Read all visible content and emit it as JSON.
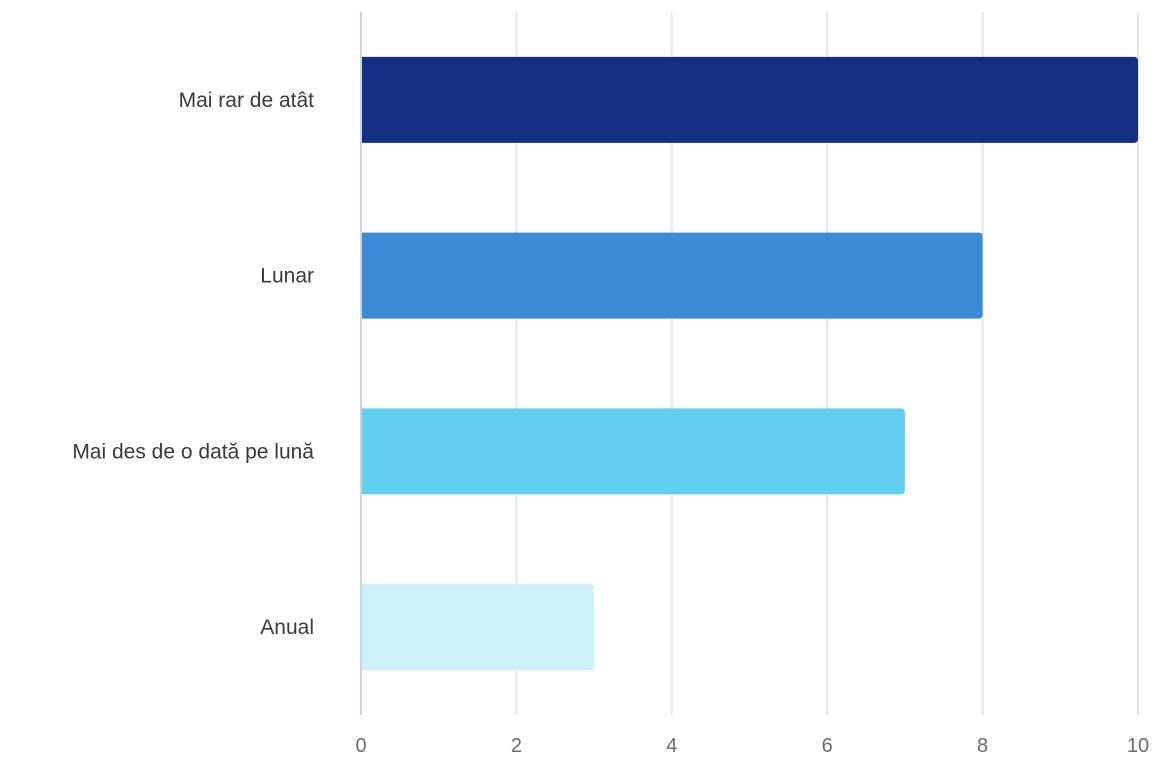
{
  "chart_data": {
    "type": "bar",
    "orientation": "horizontal",
    "categories": [
      "Mai rar de atât",
      "Lunar",
      "Mai des de o dată pe lună",
      "Anual"
    ],
    "values": [
      10,
      8,
      7,
      3
    ],
    "colors": [
      "#132f82",
      "#3a8ad6",
      "#62cfef",
      "#cdf1f9"
    ],
    "xlim": [
      0,
      10
    ],
    "xticks": [
      "0",
      "2",
      "4",
      "6",
      "8",
      "10"
    ],
    "grid": true,
    "legend": "none"
  }
}
